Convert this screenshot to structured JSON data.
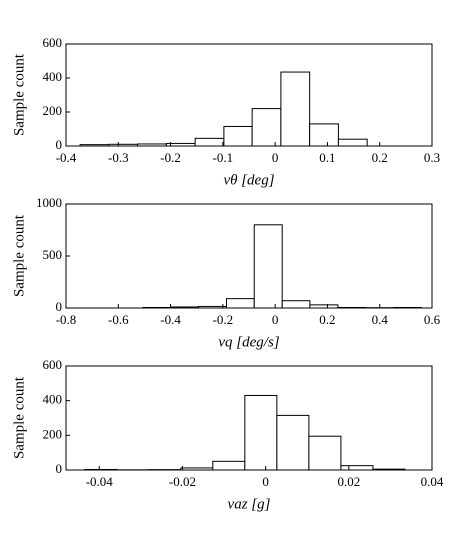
{
  "chart_data": [
    {
      "type": "histogram",
      "ylabel": "Sample count",
      "xlabel": "vθ [deg]",
      "bins": [
        -0.373,
        -0.318,
        -0.263,
        -0.208,
        -0.153,
        -0.098,
        -0.044,
        0.011,
        0.066,
        0.121,
        0.176
      ],
      "values": [
        8,
        10,
        12,
        15,
        45,
        115,
        220,
        435,
        130,
        40
      ],
      "xlim": [
        -0.4,
        0.3
      ],
      "xticks": [
        -0.4,
        -0.3,
        -0.2,
        -0.1,
        0,
        0.1,
        0.2,
        0.3
      ],
      "ylim": [
        0,
        600
      ],
      "yticks": [
        0,
        200,
        400,
        600
      ],
      "color": "#ffffff"
    },
    {
      "type": "histogram",
      "ylabel": "Sample count",
      "xlabel": "vq [deg/s]",
      "bins": [
        -0.506,
        -0.4,
        -0.293,
        -0.186,
        -0.08,
        0.027,
        0.133,
        0.24,
        0.346,
        0.453,
        0.559
      ],
      "values": [
        5,
        10,
        15,
        90,
        800,
        70,
        30,
        5,
        3,
        5
      ],
      "xlim": [
        -0.8,
        0.6
      ],
      "xticks": [
        -0.8,
        -0.6,
        -0.4,
        -0.2,
        0,
        0.2,
        0.4,
        0.6
      ],
      "ylim": [
        0,
        1000
      ],
      "yticks": [
        0,
        500,
        1000
      ],
      "color": "#ffffff"
    },
    {
      "type": "histogram",
      "ylabel": "Sample count",
      "xlabel": "vaz [g]",
      "bins": [
        -0.0435,
        -0.0358,
        -0.0281,
        -0.0204,
        -0.0127,
        -0.005,
        0.0027,
        0.0104,
        0.0181,
        0.0258,
        0.0335
      ],
      "values": [
        3,
        1,
        2,
        12,
        50,
        430,
        315,
        195,
        25,
        5
      ],
      "xlim": [
        -0.048,
        0.04
      ],
      "xticks": [
        -0.04,
        -0.02,
        0,
        0.02,
        0.04
      ],
      "ylim": [
        0,
        600
      ],
      "yticks": [
        0,
        200,
        400,
        600
      ],
      "color": "#ffffff"
    }
  ]
}
